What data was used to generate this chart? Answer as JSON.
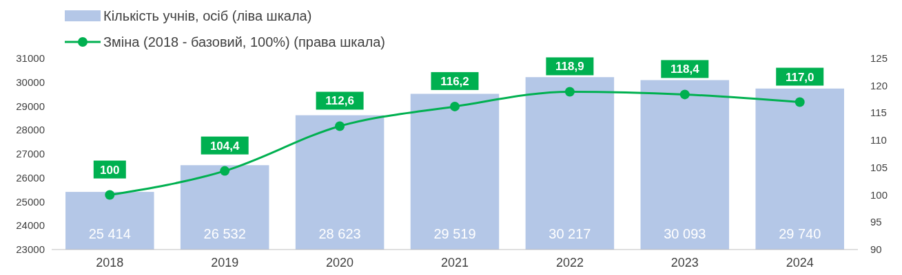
{
  "chart_data": {
    "type": "bar",
    "categories": [
      "2018",
      "2019",
      "2020",
      "2021",
      "2022",
      "2023",
      "2024"
    ],
    "series": [
      {
        "type": "bar",
        "name": "Кількість учнів, осіб (ліва шкала)",
        "color": "#b4c7e7",
        "values": [
          25414,
          26532,
          28623,
          29519,
          30217,
          30093,
          29740
        ],
        "value_labels": [
          "25 414",
          "26 532",
          "28 623",
          "29 519",
          "30 217",
          "30 093",
          "29 740"
        ]
      },
      {
        "type": "line",
        "axis": "y2",
        "name": "Зміна (2018 - базовий, 100%) (права шкала)",
        "color": "#00b050",
        "values": [
          100,
          104.4,
          112.6,
          116.2,
          118.9,
          118.4,
          117.0
        ],
        "value_labels": [
          "100",
          "104,4",
          "112,6",
          "116,2",
          "118,9",
          "118,4",
          "117,0"
        ]
      }
    ],
    "ylim": [
      23000,
      31000
    ],
    "yticks": [
      23000,
      24000,
      25000,
      26000,
      27000,
      28000,
      29000,
      30000,
      31000
    ],
    "y2lim": [
      90,
      125
    ],
    "y2ticks": [
      90,
      95,
      100,
      105,
      110,
      115,
      120,
      125
    ],
    "legend": "top left",
    "marker": "circle"
  }
}
